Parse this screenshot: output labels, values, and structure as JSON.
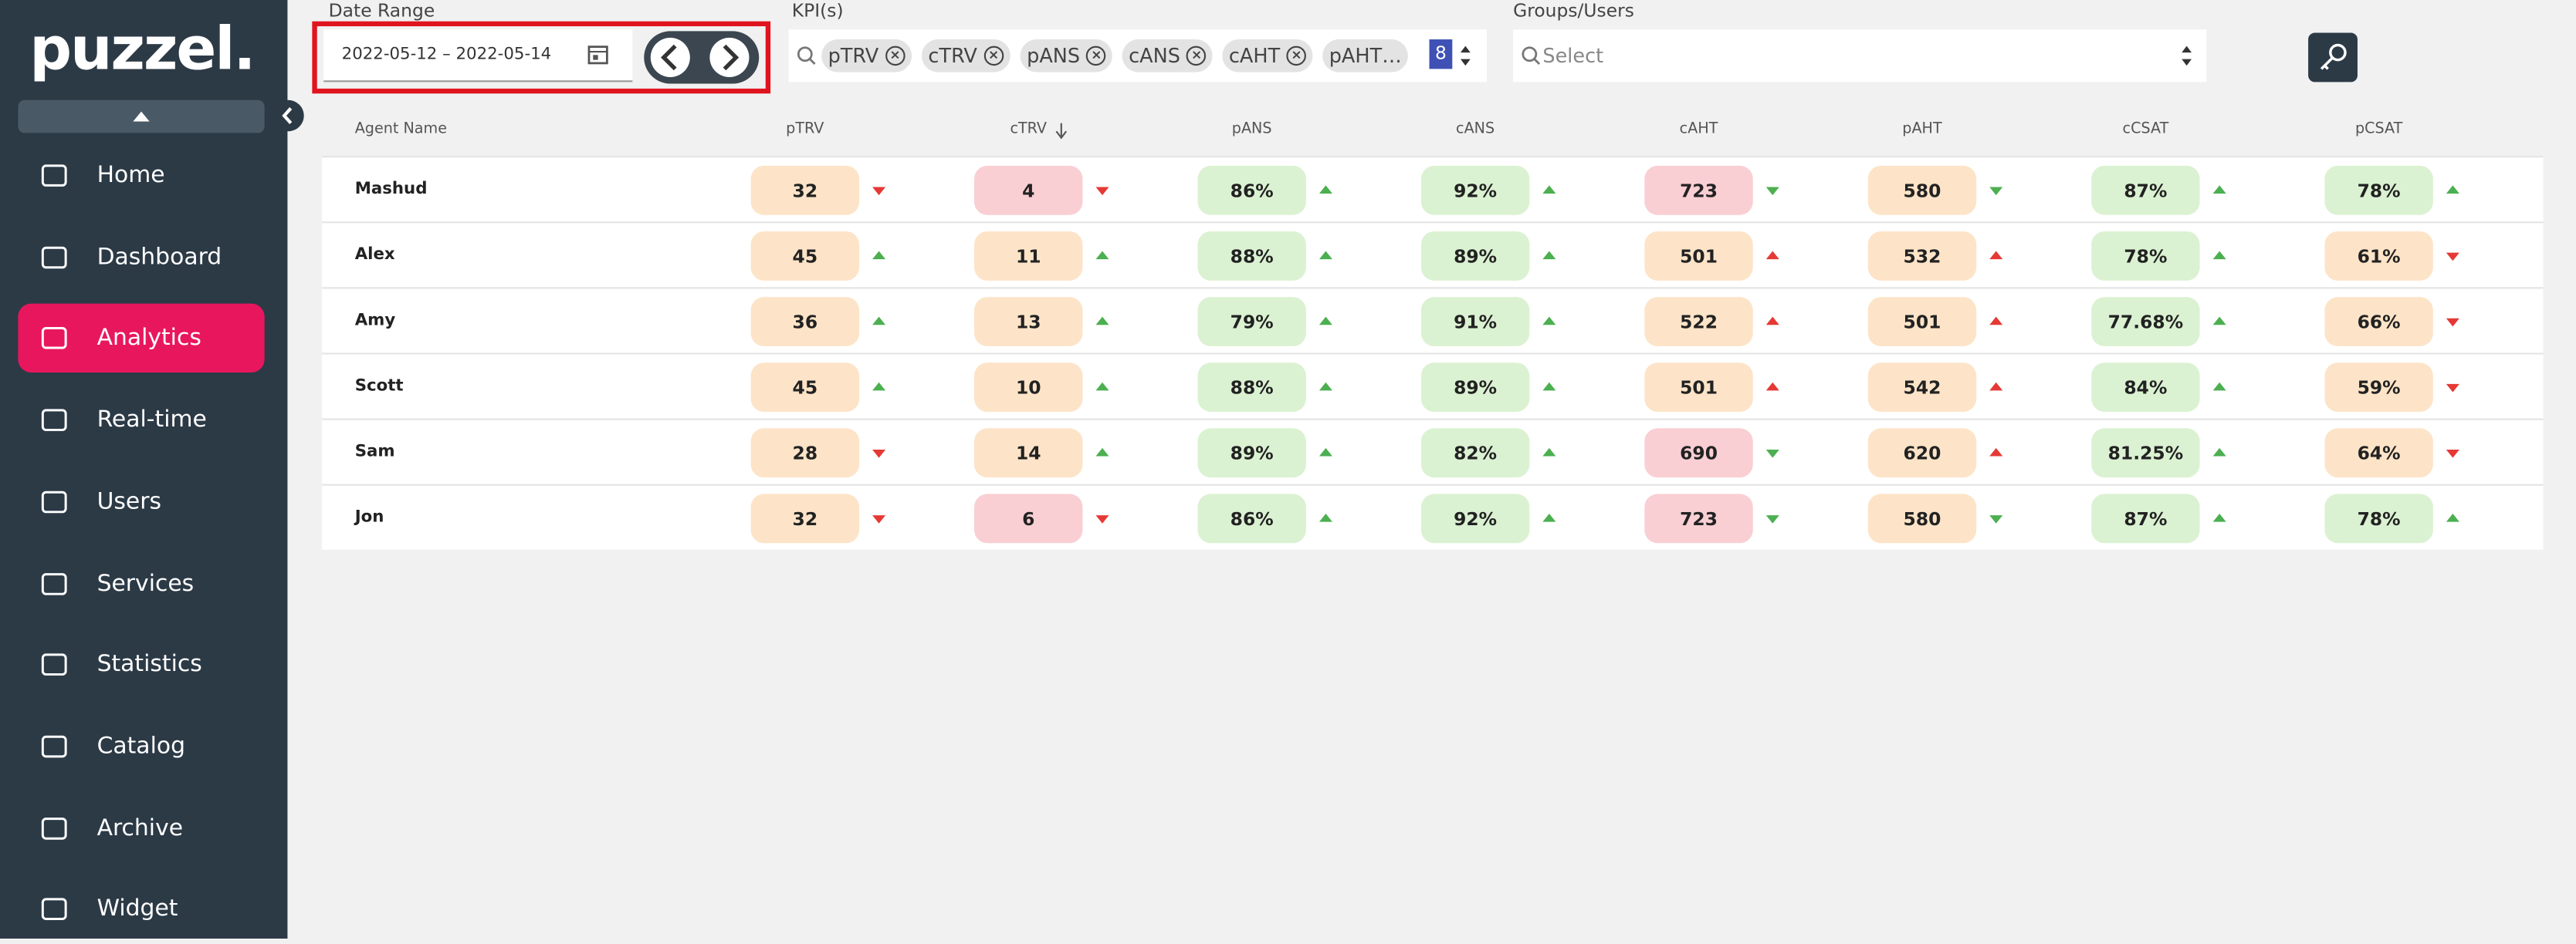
{
  "logo": "puzzel.",
  "nav": [
    "Home",
    "Dashboard",
    "Analytics",
    "Real-time",
    "Users",
    "Services",
    "Statistics",
    "Catalog",
    "Archive",
    "Widget"
  ],
  "nav_active": 2,
  "filters": {
    "date_label": "Date Range",
    "date_value": "2022-05-12 – 2022-05-14",
    "kpi_label": "KPI(s)",
    "kpi_chips": [
      "pTRV",
      "cTRV",
      "pANS",
      "cANS",
      "cAHT",
      "pAHT…"
    ],
    "kpi_count": "8",
    "groups_label": "Groups/Users",
    "groups_placeholder": "Select"
  },
  "table": {
    "headers": [
      "Agent Name",
      "pTRV",
      "cTRV",
      "pANS",
      "cANS",
      "cAHT",
      "pAHT",
      "cCSAT",
      "pCSAT"
    ],
    "rows": [
      {
        "name": "Mashud",
        "cells": [
          {
            "t": "32",
            "bg": "#fde4c8",
            "dir": "down",
            "c": "#e53935"
          },
          {
            "t": "4",
            "bg": "#f9cfd4",
            "dir": "down",
            "c": "#e53935"
          },
          {
            "t": "86%",
            "bg": "#dbf2d2",
            "dir": "up",
            "c": "#4caf50"
          },
          {
            "t": "92%",
            "bg": "#dbf2d2",
            "dir": "up",
            "c": "#4caf50"
          },
          {
            "t": "723",
            "bg": "#f9cfd4",
            "dir": "down",
            "c": "#4caf50"
          },
          {
            "t": "580",
            "bg": "#fde4c8",
            "dir": "down",
            "c": "#4caf50"
          },
          {
            "t": "87%",
            "bg": "#dbf2d2",
            "dir": "up",
            "c": "#4caf50"
          },
          {
            "t": "78%",
            "bg": "#dbf2d2",
            "dir": "up",
            "c": "#4caf50"
          }
        ]
      },
      {
        "name": "Alex",
        "cells": [
          {
            "t": "45",
            "bg": "#fde4c8",
            "dir": "up",
            "c": "#4caf50"
          },
          {
            "t": "11",
            "bg": "#fde4c8",
            "dir": "up",
            "c": "#4caf50"
          },
          {
            "t": "88%",
            "bg": "#dbf2d2",
            "dir": "up",
            "c": "#4caf50"
          },
          {
            "t": "89%",
            "bg": "#dbf2d2",
            "dir": "up",
            "c": "#4caf50"
          },
          {
            "t": "501",
            "bg": "#fde4c8",
            "dir": "up",
            "c": "#e53935"
          },
          {
            "t": "532",
            "bg": "#fde4c8",
            "dir": "up",
            "c": "#e53935"
          },
          {
            "t": "78%",
            "bg": "#dbf2d2",
            "dir": "up",
            "c": "#4caf50"
          },
          {
            "t": "61%",
            "bg": "#fde4c8",
            "dir": "down",
            "c": "#e53935"
          }
        ]
      },
      {
        "name": "Amy",
        "cells": [
          {
            "t": "36",
            "bg": "#fde4c8",
            "dir": "up",
            "c": "#4caf50"
          },
          {
            "t": "13",
            "bg": "#fde4c8",
            "dir": "up",
            "c": "#4caf50"
          },
          {
            "t": "79%",
            "bg": "#dbf2d2",
            "dir": "up",
            "c": "#4caf50"
          },
          {
            "t": "91%",
            "bg": "#dbf2d2",
            "dir": "up",
            "c": "#4caf50"
          },
          {
            "t": "522",
            "bg": "#fde4c8",
            "dir": "up",
            "c": "#e53935"
          },
          {
            "t": "501",
            "bg": "#fde4c8",
            "dir": "up",
            "c": "#e53935"
          },
          {
            "t": "77.68%",
            "bg": "#dbf2d2",
            "dir": "up",
            "c": "#4caf50"
          },
          {
            "t": "66%",
            "bg": "#fde4c8",
            "dir": "down",
            "c": "#e53935"
          }
        ]
      },
      {
        "name": "Scott",
        "cells": [
          {
            "t": "45",
            "bg": "#fde4c8",
            "dir": "up",
            "c": "#4caf50"
          },
          {
            "t": "10",
            "bg": "#fde4c8",
            "dir": "up",
            "c": "#4caf50"
          },
          {
            "t": "88%",
            "bg": "#dbf2d2",
            "dir": "up",
            "c": "#4caf50"
          },
          {
            "t": "89%",
            "bg": "#dbf2d2",
            "dir": "up",
            "c": "#4caf50"
          },
          {
            "t": "501",
            "bg": "#fde4c8",
            "dir": "up",
            "c": "#e53935"
          },
          {
            "t": "542",
            "bg": "#fde4c8",
            "dir": "up",
            "c": "#e53935"
          },
          {
            "t": "84%",
            "bg": "#dbf2d2",
            "dir": "up",
            "c": "#4caf50"
          },
          {
            "t": "59%",
            "bg": "#fde4c8",
            "dir": "down",
            "c": "#e53935"
          }
        ]
      },
      {
        "name": "Sam",
        "cells": [
          {
            "t": "28",
            "bg": "#fde4c8",
            "dir": "down",
            "c": "#e53935"
          },
          {
            "t": "14",
            "bg": "#fde4c8",
            "dir": "up",
            "c": "#4caf50"
          },
          {
            "t": "89%",
            "bg": "#dbf2d2",
            "dir": "up",
            "c": "#4caf50"
          },
          {
            "t": "82%",
            "bg": "#dbf2d2",
            "dir": "up",
            "c": "#4caf50"
          },
          {
            "t": "690",
            "bg": "#f9cfd4",
            "dir": "down",
            "c": "#4caf50"
          },
          {
            "t": "620",
            "bg": "#fde4c8",
            "dir": "up",
            "c": "#e53935"
          },
          {
            "t": "81.25%",
            "bg": "#dbf2d2",
            "dir": "up",
            "c": "#4caf50"
          },
          {
            "t": "64%",
            "bg": "#fde4c8",
            "dir": "down",
            "c": "#e53935"
          }
        ]
      },
      {
        "name": "Jon",
        "cells": [
          {
            "t": "32",
            "bg": "#fde4c8",
            "dir": "down",
            "c": "#e53935"
          },
          {
            "t": "6",
            "bg": "#f9cfd4",
            "dir": "down",
            "c": "#e53935"
          },
          {
            "t": "86%",
            "bg": "#dbf2d2",
            "dir": "up",
            "c": "#4caf50"
          },
          {
            "t": "92%",
            "bg": "#dbf2d2",
            "dir": "up",
            "c": "#4caf50"
          },
          {
            "t": "723",
            "bg": "#f9cfd4",
            "dir": "down",
            "c": "#4caf50"
          },
          {
            "t": "580",
            "bg": "#fde4c8",
            "dir": "down",
            "c": "#4caf50"
          },
          {
            "t": "87%",
            "bg": "#dbf2d2",
            "dir": "up",
            "c": "#4caf50"
          },
          {
            "t": "78%",
            "bg": "#dbf2d2",
            "dir": "up",
            "c": "#4caf50"
          }
        ]
      }
    ]
  }
}
